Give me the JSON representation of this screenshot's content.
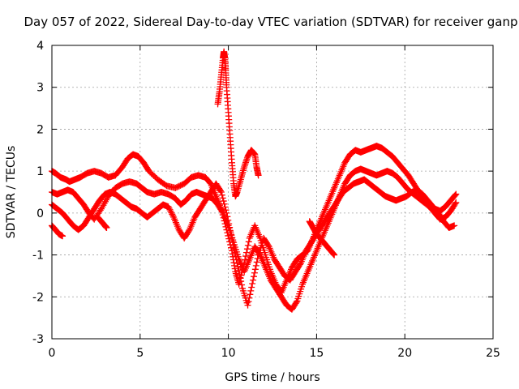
{
  "chart_data": {
    "type": "scatter",
    "title": "Day 057 of 2022, Sidereal Day-to-day VTEC variation (SDTVAR) for receiver ganp",
    "xlabel": "GPS time / hours",
    "ylabel": "SDTVAR / TECUs",
    "xlim": [
      0,
      25
    ],
    "ylim": [
      -3,
      4
    ],
    "xticks": [
      0,
      5,
      10,
      15,
      20,
      25
    ],
    "yticks": [
      -3,
      -2,
      -1,
      0,
      1,
      2,
      3,
      4
    ],
    "xtick_labels": [
      "0",
      "5",
      "10",
      "15",
      "20",
      "25"
    ],
    "ytick_labels": [
      "-3",
      "-2",
      "-1",
      "0",
      "1",
      "2",
      "3",
      "4"
    ],
    "grid": true,
    "marker": "+",
    "color": "#ff0000",
    "series": [
      {
        "name": "track-1",
        "x": [
          0.0,
          0.2,
          0.5,
          0.8,
          1.0,
          1.3,
          1.6,
          2.0,
          2.4,
          2.8,
          3.2,
          3.6,
          4.0,
          4.3,
          4.6,
          4.9,
          5.2,
          5.5,
          6.0,
          6.5,
          7.0,
          7.5,
          7.9,
          8.3,
          8.7,
          9.0,
          9.3,
          9.6,
          9.9,
          10.2,
          10.4,
          10.6,
          10.9,
          11.2,
          11.5,
          11.8,
          12.1,
          12.4,
          12.7,
          13.0,
          13.3,
          13.6,
          13.9,
          14.2,
          14.5,
          14.8,
          15.1,
          15.4,
          15.7,
          16.0,
          16.3,
          16.6,
          16.9,
          17.2,
          17.5,
          17.8,
          18.1,
          18.4,
          18.7,
          19.0,
          19.3,
          19.6,
          19.9,
          20.2,
          20.5,
          20.8,
          21.1,
          21.4,
          21.7,
          22.0,
          22.3,
          22.6,
          22.9
        ],
        "y": [
          1.0,
          0.95,
          0.85,
          0.8,
          0.75,
          0.8,
          0.85,
          0.95,
          1.0,
          0.95,
          0.85,
          0.9,
          1.1,
          1.3,
          1.4,
          1.35,
          1.2,
          1.0,
          0.8,
          0.65,
          0.6,
          0.7,
          0.85,
          0.9,
          0.85,
          0.7,
          0.4,
          0.1,
          -0.4,
          -0.9,
          -1.4,
          -1.7,
          -1.2,
          -0.6,
          -0.3,
          -0.6,
          -1.0,
          -1.4,
          -1.7,
          -1.9,
          -1.6,
          -1.3,
          -1.1,
          -1.0,
          -0.9,
          -0.6,
          -0.3,
          0.0,
          0.3,
          0.6,
          0.9,
          1.2,
          1.4,
          1.5,
          1.45,
          1.5,
          1.55,
          1.6,
          1.55,
          1.45,
          1.35,
          1.2,
          1.05,
          0.9,
          0.7,
          0.5,
          0.35,
          0.2,
          0.1,
          0.05,
          0.15,
          0.3,
          0.45
        ]
      },
      {
        "name": "track-2",
        "x": [
          0.0,
          0.3,
          0.6,
          0.9,
          1.2,
          1.5,
          1.8,
          2.1,
          2.4,
          2.8,
          3.2,
          3.6,
          4.0,
          4.4,
          4.8,
          5.1,
          5.4,
          5.8,
          6.2,
          6.6,
          7.0,
          7.3,
          7.6,
          7.9,
          8.2,
          8.5,
          8.8,
          9.1,
          9.4,
          9.7,
          10.0,
          10.3,
          10.6,
          10.9,
          11.2,
          11.5,
          11.8,
          12.1,
          12.4,
          12.7,
          13.0,
          13.3,
          13.6,
          13.9,
          14.2,
          14.5,
          14.8,
          15.1,
          15.4,
          15.7,
          16.0,
          16.3,
          16.6,
          16.9,
          17.2,
          17.5,
          17.8,
          18.1,
          18.4,
          18.7,
          19.0,
          19.3,
          19.6,
          19.9,
          20.2,
          20.5,
          20.8,
          21.1,
          21.4,
          21.7,
          22.0,
          22.3,
          22.6,
          22.9
        ],
        "y": [
          0.5,
          0.45,
          0.5,
          0.55,
          0.5,
          0.35,
          0.2,
          0.0,
          -0.15,
          0.1,
          0.4,
          0.6,
          0.7,
          0.75,
          0.7,
          0.6,
          0.5,
          0.45,
          0.5,
          0.45,
          0.35,
          0.2,
          0.3,
          0.45,
          0.5,
          0.45,
          0.4,
          0.35,
          0.2,
          0.0,
          -0.3,
          -0.7,
          -1.1,
          -1.4,
          -1.1,
          -0.8,
          -1.0,
          -1.3,
          -1.6,
          -1.8,
          -2.0,
          -2.2,
          -2.3,
          -2.1,
          -1.7,
          -1.4,
          -1.1,
          -0.8,
          -0.5,
          -0.2,
          0.1,
          0.4,
          0.7,
          0.9,
          1.0,
          1.05,
          1.0,
          0.95,
          0.9,
          0.95,
          1.0,
          0.95,
          0.85,
          0.7,
          0.55,
          0.45,
          0.35,
          0.25,
          0.15,
          0.0,
          -0.15,
          -0.1,
          0.05,
          0.25
        ]
      },
      {
        "name": "track-3",
        "x": [
          0.0,
          0.3,
          0.6,
          0.9,
          1.2,
          1.5,
          1.8,
          2.1,
          2.4,
          2.7,
          3.0,
          3.3,
          3.6,
          3.9,
          4.2,
          4.5,
          4.8,
          5.1,
          5.4,
          5.7,
          6.0,
          6.3,
          6.6,
          6.9,
          7.2,
          7.5,
          7.8,
          8.1,
          8.4,
          8.7,
          9.0,
          9.3,
          9.6,
          9.9,
          10.2,
          10.5,
          10.8,
          11.1,
          11.4,
          11.7,
          12.0,
          12.3,
          12.6,
          12.9,
          13.2,
          13.5,
          13.8,
          14.1,
          14.4,
          14.7,
          15.0,
          15.3,
          15.6,
          15.9,
          16.2,
          16.5,
          16.8,
          17.1,
          17.4,
          17.7,
          18.0,
          18.3,
          18.6,
          18.9,
          19.2,
          19.5,
          19.8,
          20.1,
          20.4,
          20.7,
          21.0,
          21.3,
          21.6,
          21.9,
          22.2,
          22.5,
          22.8
        ],
        "y": [
          0.2,
          0.1,
          0.0,
          -0.15,
          -0.3,
          -0.4,
          -0.3,
          -0.1,
          0.1,
          0.3,
          0.45,
          0.5,
          0.45,
          0.35,
          0.25,
          0.15,
          0.1,
          0.0,
          -0.1,
          0.0,
          0.1,
          0.2,
          0.15,
          -0.1,
          -0.4,
          -0.6,
          -0.4,
          -0.1,
          0.1,
          0.3,
          0.5,
          0.7,
          0.5,
          0.0,
          -0.6,
          -1.2,
          -1.8,
          -2.2,
          -1.6,
          -1.0,
          -0.6,
          -0.8,
          -1.1,
          -1.3,
          -1.5,
          -1.6,
          -1.4,
          -1.2,
          -0.9,
          -0.7,
          -0.5,
          -0.3,
          -0.1,
          0.1,
          0.3,
          0.5,
          0.6,
          0.7,
          0.75,
          0.8,
          0.7,
          0.6,
          0.5,
          0.4,
          0.35,
          0.3,
          0.35,
          0.4,
          0.5,
          0.55,
          0.45,
          0.3,
          0.15,
          0.0,
          -0.2,
          -0.35,
          -0.3
        ]
      },
      {
        "name": "track-4",
        "x": [
          0.0,
          0.2,
          0.4,
          0.6
        ],
        "y": [
          -0.3,
          -0.4,
          -0.5,
          -0.55
        ]
      },
      {
        "name": "track-5",
        "x": [
          9.4,
          9.5,
          9.6,
          9.7,
          9.75,
          9.8,
          9.85,
          9.9,
          10.0,
          10.1,
          10.2,
          10.3,
          10.4,
          10.5,
          10.7,
          10.9,
          11.1,
          11.3,
          11.5,
          11.6,
          11.7
        ],
        "y": [
          2.6,
          2.9,
          3.3,
          3.7,
          3.85,
          3.7,
          3.4,
          3.0,
          2.4,
          1.8,
          1.2,
          0.7,
          0.4,
          0.5,
          0.8,
          1.1,
          1.35,
          1.5,
          1.4,
          1.1,
          0.9
        ]
      },
      {
        "name": "track-6",
        "x": [
          14.6,
          14.8,
          15.0,
          15.2,
          15.4,
          15.6,
          15.8,
          16.0
        ],
        "y": [
          -0.2,
          -0.35,
          -0.5,
          -0.6,
          -0.7,
          -0.8,
          -0.9,
          -1.0
        ]
      },
      {
        "name": "track-7",
        "x": [
          2.6,
          2.8,
          3.0,
          3.1
        ],
        "y": [
          -0.1,
          -0.2,
          -0.3,
          -0.35
        ]
      }
    ]
  }
}
